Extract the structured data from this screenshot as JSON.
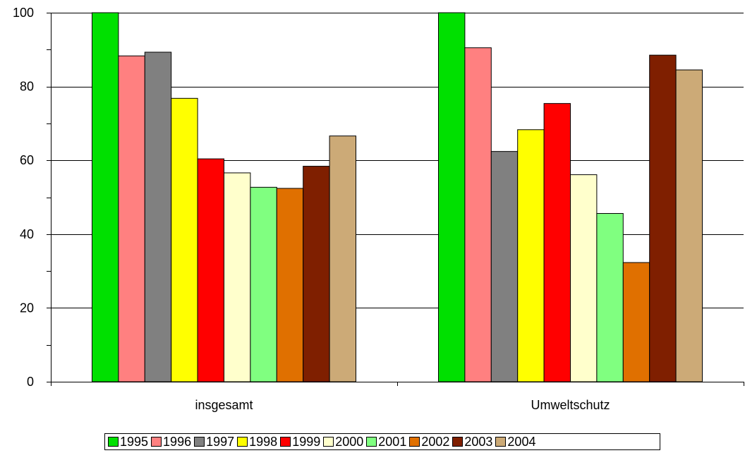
{
  "chart_data": {
    "type": "bar",
    "categories": [
      "insgesamt",
      "Umweltschutz"
    ],
    "series": [
      {
        "name": "1995",
        "color": "#00E000",
        "values": [
          100,
          100
        ]
      },
      {
        "name": "1996",
        "color": "#FF8080",
        "values": [
          88.3,
          90.5
        ]
      },
      {
        "name": "1997",
        "color": "#808080",
        "values": [
          89.3,
          62.4
        ]
      },
      {
        "name": "1998",
        "color": "#FFFF00",
        "values": [
          76.8,
          68.3
        ]
      },
      {
        "name": "1999",
        "color": "#FF0000",
        "values": [
          60.4,
          75.4
        ]
      },
      {
        "name": "2000",
        "color": "#FFFFCC",
        "values": [
          56.6,
          56.1
        ]
      },
      {
        "name": "2001",
        "color": "#80FF80",
        "values": [
          52.7,
          45.6
        ]
      },
      {
        "name": "2002",
        "color": "#E07000",
        "values": [
          52.4,
          32.3
        ]
      },
      {
        "name": "2003",
        "color": "#7F1F00",
        "values": [
          58.4,
          88.5
        ]
      },
      {
        "name": "2004",
        "color": "#CCAA77",
        "values": [
          66.6,
          84.5
        ]
      }
    ],
    "ylim": [
      0,
      100
    ],
    "yticks": [
      "0",
      "20",
      "40",
      "60",
      "80",
      "100"
    ],
    "grid": true,
    "legend_position": "bottom"
  }
}
